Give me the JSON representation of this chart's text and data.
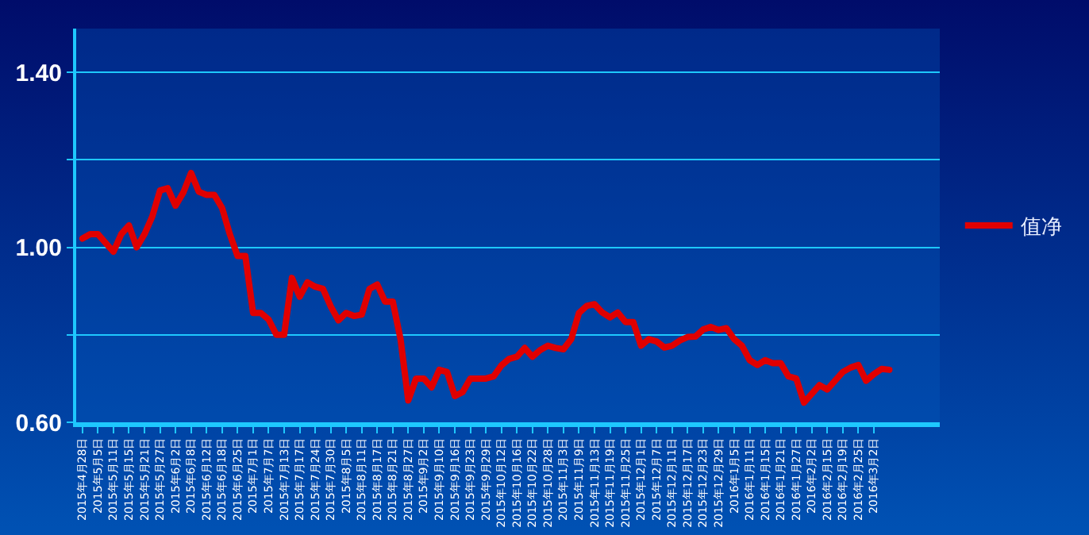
{
  "chart_data": {
    "type": "line",
    "categories": [
      "2015年4月28日",
      null,
      "2015年5月5日",
      null,
      "2015年5月11日",
      null,
      "2015年5月15日",
      null,
      "2015年5月21日",
      null,
      "2015年5月27日",
      null,
      "2015年6月2日",
      null,
      "2015年6月8日",
      null,
      "2015年6月12日",
      null,
      "2015年6月18日",
      null,
      "2015年6月25日",
      null,
      "2015年7月1日",
      null,
      "2015年7月7日",
      null,
      "2015年7月13日",
      null,
      "2015年7月17日",
      null,
      "2015年7月24日",
      null,
      "2015年7月30日",
      null,
      "2015年8月5日",
      null,
      "2015年8月11日",
      null,
      "2015年8月17日",
      null,
      "2015年8月21日",
      null,
      "2015年8月27日",
      null,
      "2015年9月2日",
      null,
      "2015年9月10日",
      null,
      "2015年9月16日",
      null,
      "2015年9月23日",
      null,
      "2015年9月29日",
      null,
      "2015年10月12日",
      null,
      "2015年10月16日",
      null,
      "2015年10月22日",
      null,
      "2015年10月28日",
      null,
      "2015年11月3日",
      null,
      "2015年11月9日",
      null,
      "2015年11月13日",
      null,
      "2015年11月19日",
      null,
      "2015年11月25日",
      null,
      "2015年12月1日",
      null,
      "2015年12月7日",
      null,
      "2015年12月11日",
      null,
      "2015年12月17日",
      null,
      "2015年12月23日",
      null,
      "2015年12月29日",
      null,
      "2016年1月5日",
      null,
      "2016年1月11日",
      null,
      "2016年1月15日",
      null,
      "2016年1月21日",
      null,
      "2016年1月27日",
      null,
      "2016年2月2日",
      null,
      "2016年2月15日",
      null,
      "2016年2月19日",
      null,
      "2016年2月25日",
      null,
      "2016年3月2日",
      null,
      null
    ],
    "series": [
      {
        "name": "值净",
        "color": "#e00000",
        "values": [
          1.02,
          1.03,
          1.03,
          1.01,
          0.99,
          1.03,
          1.05,
          1.0,
          1.03,
          1.07,
          1.13,
          1.135,
          1.095,
          1.125,
          1.17,
          1.127,
          1.12,
          1.12,
          1.09,
          1.03,
          0.98,
          0.98,
          0.85,
          0.85,
          0.835,
          0.8,
          0.8,
          0.93,
          0.887,
          0.92,
          0.91,
          0.905,
          0.865,
          0.833,
          0.85,
          0.843,
          0.846,
          0.905,
          0.915,
          0.876,
          0.876,
          0.79,
          0.65,
          0.7,
          0.7,
          0.68,
          0.72,
          0.715,
          0.66,
          0.669,
          0.7,
          0.7,
          0.7,
          0.705,
          0.73,
          0.745,
          0.75,
          0.77,
          0.75,
          0.765,
          0.775,
          0.77,
          0.767,
          0.79,
          0.85,
          0.866,
          0.87,
          0.851,
          0.84,
          0.851,
          0.829,
          0.829,
          0.775,
          0.79,
          0.785,
          0.771,
          0.775,
          0.787,
          0.795,
          0.796,
          0.812,
          0.818,
          0.811,
          0.815,
          0.79,
          0.775,
          0.742,
          0.731,
          0.742,
          0.735,
          0.735,
          0.705,
          0.7,
          0.645,
          0.665,
          0.685,
          0.675,
          0.695,
          0.715,
          0.725,
          0.731,
          0.695,
          0.71,
          0.722,
          0.72
        ]
      }
    ],
    "ylim": [
      0.6,
      1.5
    ],
    "yticks": [
      {
        "value": 0.6,
        "label": "0.60"
      },
      {
        "value": 0.8,
        "label": null
      },
      {
        "value": 1.0,
        "label": "1.00"
      },
      {
        "value": 1.2,
        "label": null
      },
      {
        "value": 1.4,
        "label": "1.40"
      }
    ],
    "grid": "y",
    "legend": "right",
    "marker": "none",
    "line_style": "solid"
  }
}
